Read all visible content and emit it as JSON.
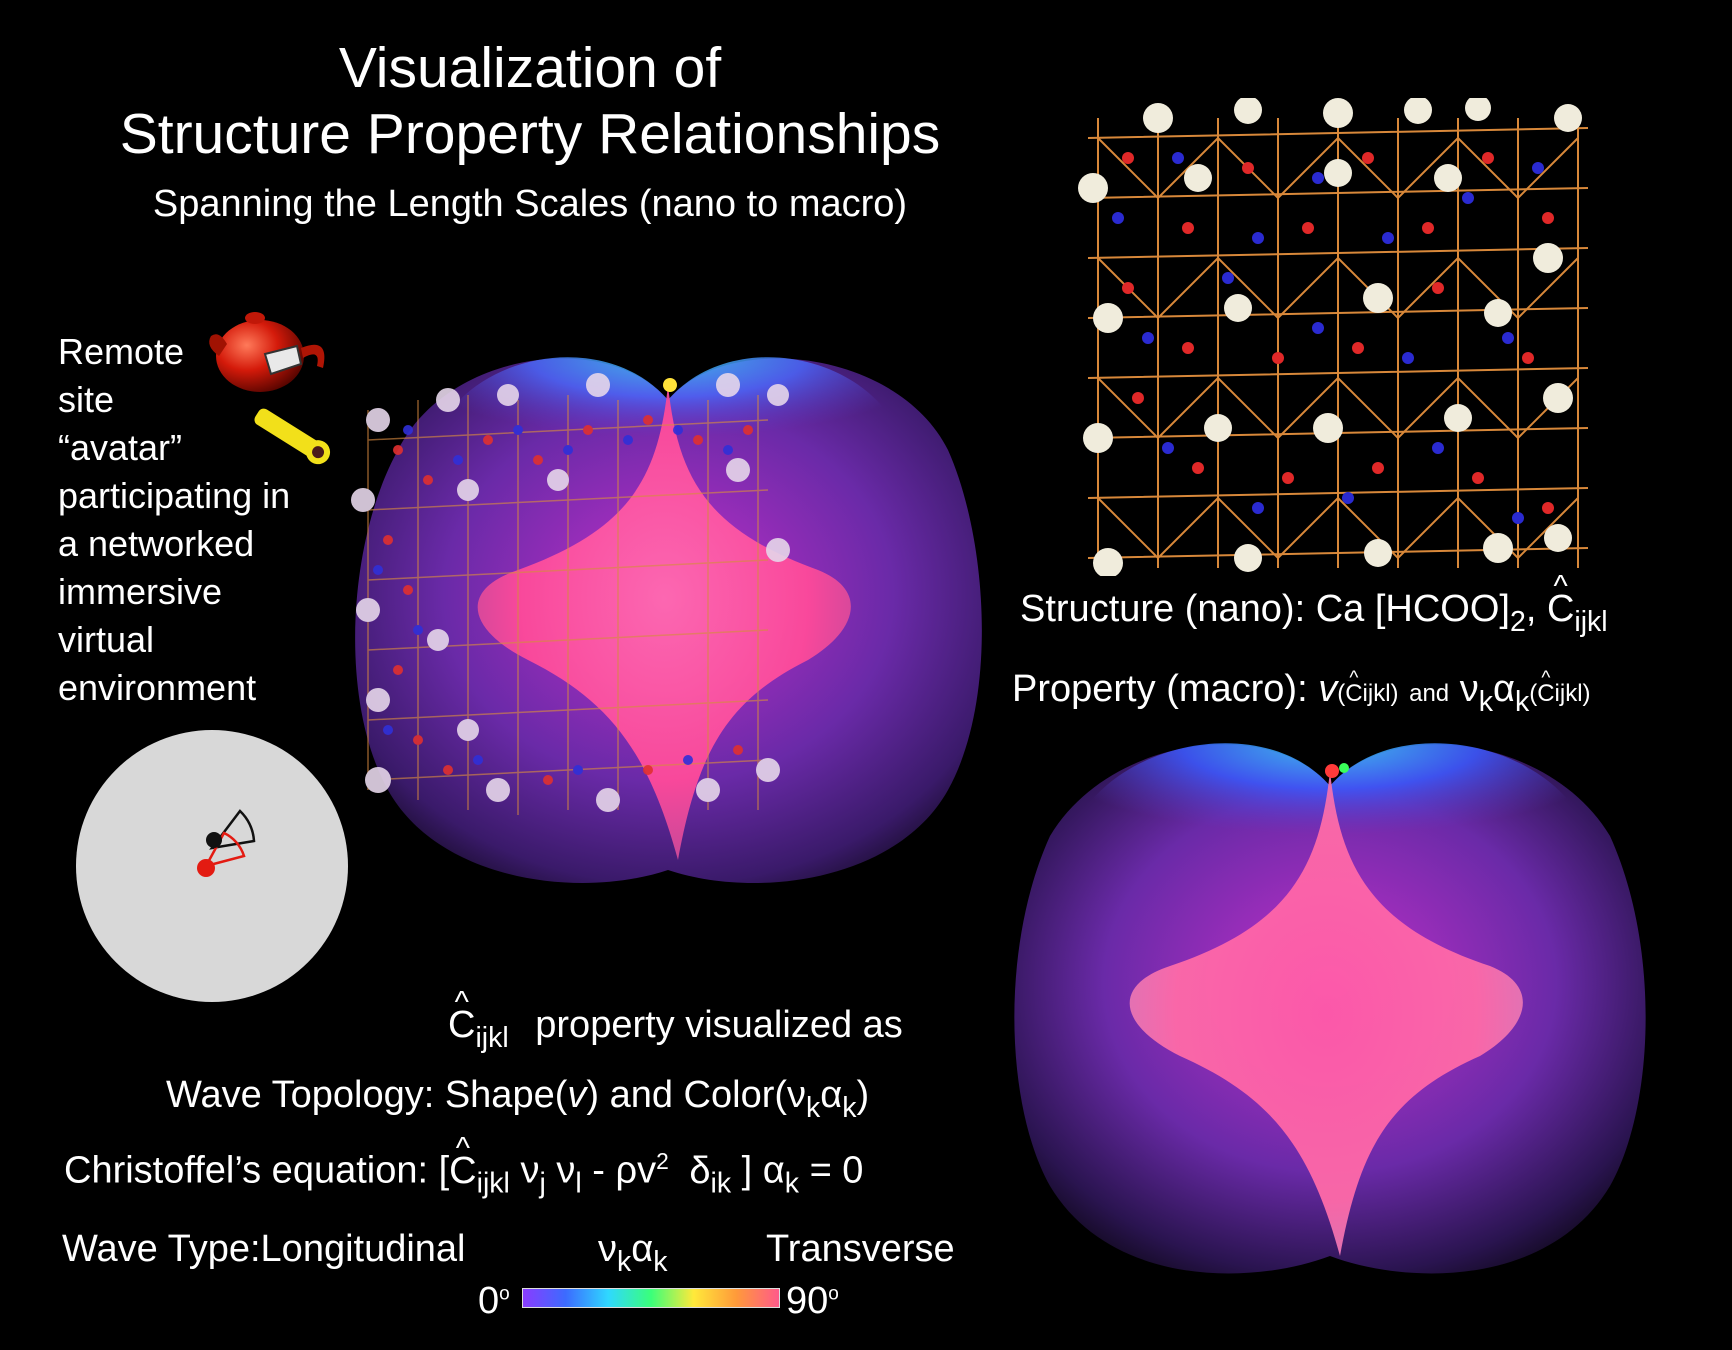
{
  "title": {
    "line1": "Visualization of",
    "line2": "Structure Property Relationships",
    "subtitle": "Spanning the Length Scales (nano to macro)"
  },
  "avatar": {
    "lines": [
      "Remote",
      "site",
      "“avatar”",
      "participating in",
      "a networked",
      "immersive",
      "virtual",
      "environment"
    ]
  },
  "structure": {
    "prefix": "Structure",
    "scale": "(nano): Ca [HCOO]",
    "sub2": "2",
    "comma": ",",
    "c": "C",
    "ijkl": "ijkl"
  },
  "property": {
    "prefix": "Property",
    "scale": "(macro):",
    "v": "v",
    "c": "C",
    "ijkl": "ijkl",
    "and": "and",
    "nu": "ν",
    "alpha": "α",
    "k": "k"
  },
  "visualized": {
    "c": "C",
    "ijkl": "ijkl",
    "text": "property visualized as"
  },
  "wave_topology": {
    "label": "Wave Topology:",
    "shape": "Shape",
    "v": "v",
    "and_color": "and Color",
    "nu": "ν",
    "alpha": "α",
    "k": "k"
  },
  "christoffel": {
    "label": "Christoffel’s equation:",
    "open": "[",
    "c": "C",
    "ijkl": "ijkl",
    "nu": "ν",
    "j": "j",
    "l": "l",
    "minus": "-",
    "rho_v": "ρv",
    "sq": "2",
    "delta": "δ",
    "ik": "ik",
    "close": "]",
    "alpha": "α",
    "k": "k",
    "eq": "= 0"
  },
  "wave_type": {
    "label": "Wave Type",
    "colon": ":",
    "longitudinal": "Longitudinal",
    "nu": "ν",
    "alpha": "α",
    "k": "k",
    "transverse": "Transverse",
    "min": "0",
    "max": "90",
    "deg": "o"
  },
  "colors": {
    "background": "#000000",
    "text": "#ffffff",
    "globe": "#d8d8d8",
    "avatar_red": "#e31b12",
    "avatar_black": "#111111",
    "teapot": "#d41a0a",
    "wand": "#f2e01a"
  }
}
